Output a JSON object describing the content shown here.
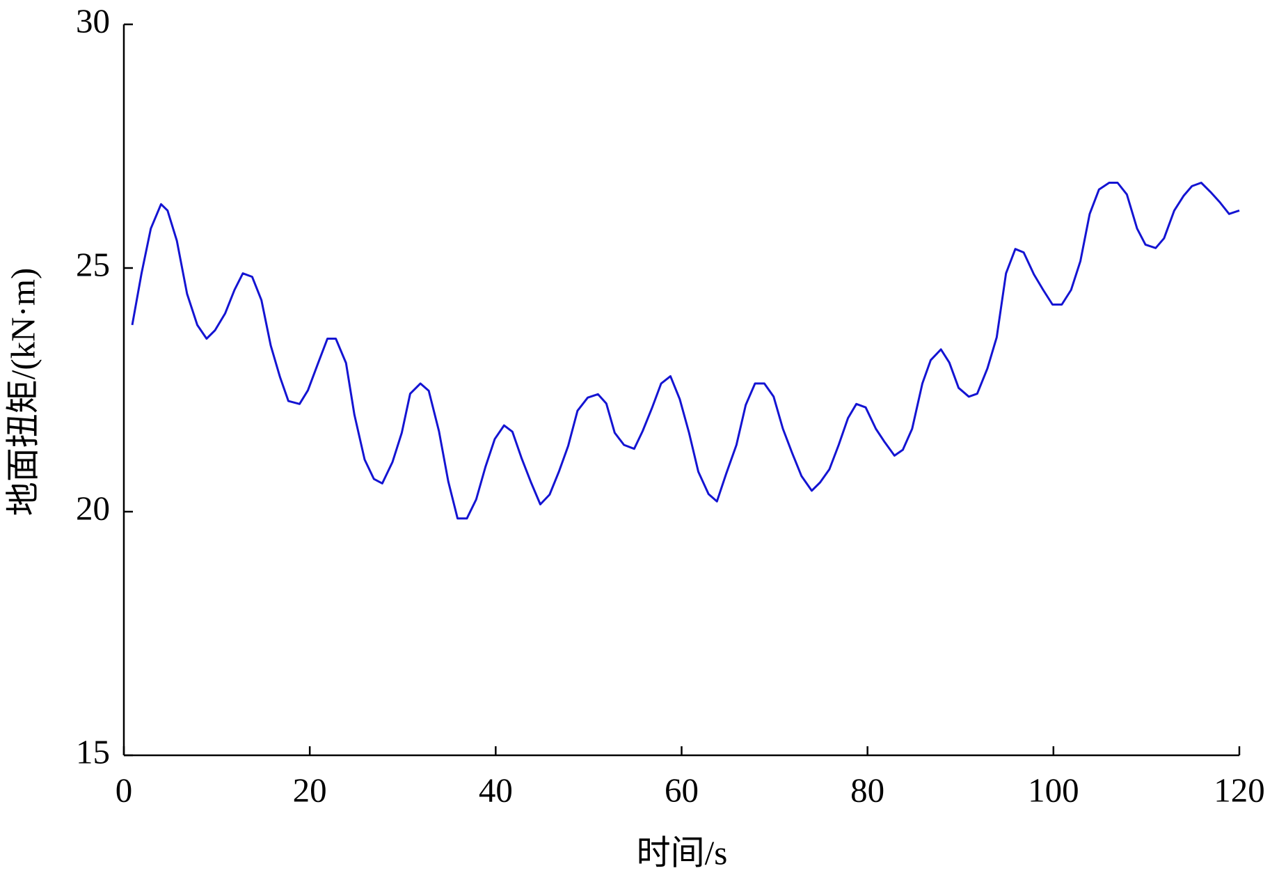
{
  "chart_data": {
    "type": "line",
    "x_label": "时间/s",
    "y_label": "地面扭矩/(kN·m)",
    "x": [
      0.9,
      1.9,
      2.9,
      4.0,
      4.7,
      5.7,
      6.8,
      7.9,
      8.9,
      9.8,
      10.9,
      11.9,
      12.8,
      13.8,
      14.8,
      15.8,
      16.8,
      17.7,
      18.9,
      19.8,
      20.9,
      21.9,
      22.8,
      23.9,
      24.8,
      25.9,
      26.9,
      27.8,
      28.9,
      29.9,
      30.8,
      31.9,
      32.8,
      33.9,
      34.9,
      35.9,
      36.9,
      37.9,
      38.9,
      39.9,
      40.9,
      41.8,
      42.8,
      43.8,
      44.8,
      45.8,
      46.8,
      47.8,
      48.8,
      49.9,
      51.0,
      51.9,
      52.8,
      53.8,
      54.9,
      55.8,
      56.8,
      57.8,
      58.8,
      59.8,
      60.8,
      61.8,
      62.9,
      63.8,
      64.8,
      65.9,
      66.9,
      67.9,
      68.9,
      69.9,
      70.9,
      71.9,
      72.9,
      74.0,
      74.9,
      75.9,
      76.9,
      77.9,
      78.8,
      79.8,
      80.9,
      81.8,
      82.9,
      83.8,
      84.8,
      85.9,
      86.8,
      87.9,
      88.8,
      89.8,
      90.9,
      91.8,
      92.9,
      93.9,
      94.9,
      95.9,
      96.8,
      97.9,
      98.9,
      99.9,
      100.9,
      101.9,
      102.9,
      103.9,
      104.9,
      106.0,
      106.9,
      107.9,
      109.0,
      109.9,
      111.0,
      111.9,
      113.0,
      114.0,
      114.9,
      115.9,
      116.9,
      117.9,
      118.9,
      120.0
    ],
    "series": [
      {
        "name": "地面扭矩",
        "color": "#1414d2",
        "values": [
          23.83,
          24.89,
          25.81,
          26.31,
          26.18,
          25.56,
          24.47,
          23.83,
          23.55,
          23.72,
          24.07,
          24.55,
          24.89,
          24.82,
          24.34,
          23.41,
          22.76,
          22.27,
          22.21,
          22.49,
          23.05,
          23.55,
          23.55,
          23.05,
          21.99,
          21.07,
          20.67,
          20.58,
          21.02,
          21.62,
          22.42,
          22.63,
          22.48,
          21.65,
          20.62,
          19.86,
          19.86,
          20.25,
          20.92,
          21.49,
          21.77,
          21.64,
          21.09,
          20.6,
          20.15,
          20.35,
          20.82,
          21.35,
          22.07,
          22.34,
          22.41,
          22.22,
          21.62,
          21.37,
          21.29,
          21.65,
          22.12,
          22.63,
          22.78,
          22.31,
          21.62,
          20.82,
          20.36,
          20.21,
          20.78,
          21.37,
          22.19,
          22.63,
          22.63,
          22.36,
          21.7,
          21.2,
          20.73,
          20.43,
          20.6,
          20.87,
          21.37,
          21.92,
          22.21,
          22.14,
          21.7,
          21.44,
          21.15,
          21.27,
          21.7,
          22.63,
          23.11,
          23.33,
          23.06,
          22.54,
          22.36,
          22.42,
          22.94,
          23.58,
          24.89,
          25.39,
          25.32,
          24.87,
          24.55,
          24.25,
          24.25,
          24.55,
          25.14,
          26.11,
          26.61,
          26.75,
          26.75,
          26.51,
          25.81,
          25.48,
          25.41,
          25.61,
          26.18,
          26.48,
          26.68,
          26.75,
          26.56,
          26.35,
          26.11,
          26.18
        ]
      }
    ],
    "xlim": [
      0,
      120
    ],
    "xticks": [
      0,
      20,
      40,
      60,
      80,
      100,
      120
    ],
    "ylim": [
      15,
      30
    ],
    "yticks": [
      15,
      20,
      25,
      30
    ]
  }
}
